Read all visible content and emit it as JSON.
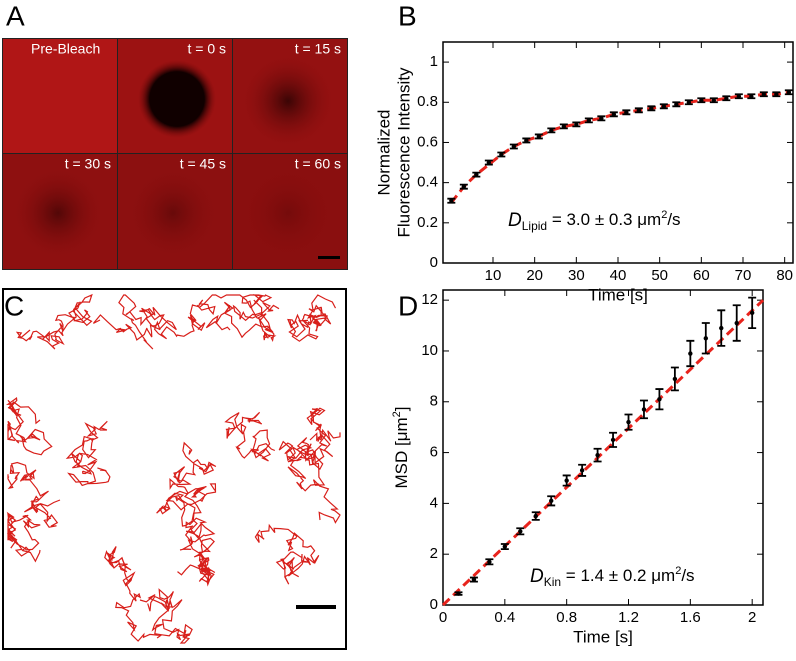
{
  "panel_labels": [
    "A",
    "B",
    "C",
    "D"
  ],
  "frap_frames": [
    "Pre-Bleach",
    "t = 0 s",
    "t = 15 s",
    "t = 30 s",
    "t = 45 s",
    "t = 60 s"
  ],
  "chart_data": [
    {
      "type": "errorbar",
      "panel": "B",
      "ylabel": [
        "Normalized",
        "Fluorescence Intensity"
      ],
      "xlabel": "Time [s]",
      "annotation": {
        "symbol": "D",
        "subscript": "Lipid",
        "text": " = 3.0 ± 0.3 μm",
        "sup": "2",
        "tail": "/s"
      },
      "x": [
        0,
        3,
        6,
        9,
        12,
        15,
        18,
        21,
        24,
        27,
        30,
        33,
        36,
        39,
        42,
        45,
        48,
        51,
        54,
        57,
        60,
        63,
        66,
        69,
        72,
        75,
        78,
        81
      ],
      "values": [
        0.31,
        0.38,
        0.44,
        0.5,
        0.54,
        0.58,
        0.61,
        0.63,
        0.66,
        0.68,
        0.69,
        0.71,
        0.72,
        0.74,
        0.75,
        0.76,
        0.77,
        0.78,
        0.79,
        0.8,
        0.81,
        0.81,
        0.82,
        0.83,
        0.83,
        0.84,
        0.84,
        0.85
      ],
      "errors": [
        0.01,
        0.01,
        0.01,
        0.01,
        0.01,
        0.01,
        0.01,
        0.01,
        0.01,
        0.01,
        0.01,
        0.01,
        0.01,
        0.01,
        0.01,
        0.01,
        0.01,
        0.01,
        0.01,
        0.01,
        0.01,
        0.01,
        0.01,
        0.01,
        0.01,
        0.01,
        0.01,
        0.01
      ],
      "color": "#000000",
      "fit_x": [
        0,
        3,
        6,
        9,
        12,
        15,
        18,
        21,
        24,
        27,
        30,
        33,
        36,
        39,
        42,
        45,
        48,
        51,
        54,
        57,
        60,
        63,
        66,
        69,
        72,
        75,
        78,
        81
      ],
      "fit_y": [
        0.3,
        0.38,
        0.44,
        0.49,
        0.54,
        0.58,
        0.61,
        0.63,
        0.66,
        0.68,
        0.69,
        0.71,
        0.72,
        0.74,
        0.75,
        0.76,
        0.77,
        0.78,
        0.79,
        0.8,
        0.81,
        0.81,
        0.82,
        0.83,
        0.83,
        0.84,
        0.84,
        0.85
      ],
      "fit_color": "#e8231c",
      "xlim": [
        -2,
        82
      ],
      "ylim": [
        0,
        1.1
      ],
      "xticks": [
        10,
        20,
        30,
        40,
        50,
        60,
        70,
        80
      ],
      "yticks": [
        0,
        0.2,
        0.4,
        0.6,
        0.8,
        1
      ]
    },
    {
      "type": "errorbar",
      "panel": "D",
      "ylabel": [
        "MSD [μm",
        "2",
        "]"
      ],
      "xlabel": "Time [s]",
      "annotation": {
        "symbol": "D",
        "subscript": "Kin",
        "text": " = 1.4 ± 0.2 μm",
        "sup": "2",
        "tail": "/s"
      },
      "x": [
        0.1,
        0.2,
        0.3,
        0.4,
        0.5,
        0.6,
        0.7,
        0.8,
        0.9,
        1.0,
        1.1,
        1.2,
        1.3,
        1.4,
        1.5,
        1.6,
        1.7,
        1.8,
        1.9,
        2.0
      ],
      "values": [
        0.45,
        1.0,
        1.7,
        2.3,
        2.9,
        3.5,
        4.1,
        4.9,
        5.3,
        5.9,
        6.5,
        7.2,
        7.7,
        8.1,
        8.9,
        9.9,
        10.5,
        10.9,
        11.1,
        11.5
      ],
      "errors": [
        0.05,
        0.08,
        0.1,
        0.1,
        0.12,
        0.15,
        0.18,
        0.2,
        0.22,
        0.25,
        0.28,
        0.3,
        0.35,
        0.4,
        0.45,
        0.5,
        0.6,
        0.7,
        0.7,
        0.6
      ],
      "color": "#000000",
      "fit_x": [
        0,
        2.07
      ],
      "fit_y": [
        0,
        12.0
      ],
      "fit_color": "#e8231c",
      "xlim": [
        0,
        2.07
      ],
      "ylim": [
        0,
        12.4
      ],
      "xticks": [
        0,
        0.4,
        0.8,
        1.2,
        1.6,
        2
      ],
      "yticks": [
        0,
        2,
        4,
        6,
        8,
        10,
        12
      ]
    }
  ]
}
